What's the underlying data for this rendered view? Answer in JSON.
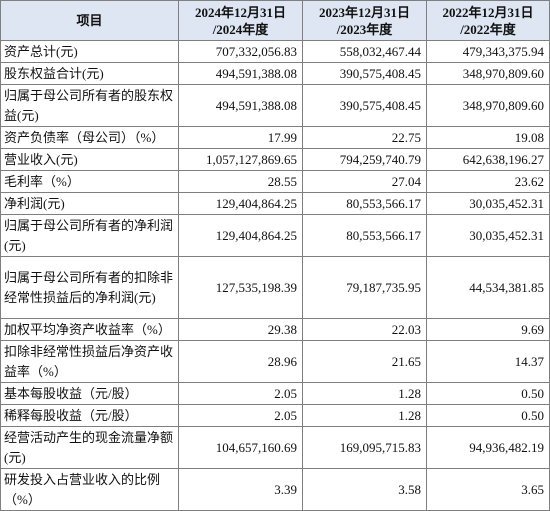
{
  "table": {
    "headers": {
      "item": "项目",
      "col2024": [
        "2024年12月31日",
        "/2024年度"
      ],
      "col2023": [
        "2023年12月31日",
        "/2023年度"
      ],
      "col2022": [
        "2022年12月31日",
        "/2022年度"
      ]
    },
    "rows": [
      {
        "label": "资产总计(元)",
        "v2024": "707,332,056.83",
        "v2023": "558,032,467.44",
        "v2022": "479,343,375.94"
      },
      {
        "label": "股东权益合计(元)",
        "v2024": "494,591,388.08",
        "v2023": "390,575,408.45",
        "v2022": "348,970,809.60"
      },
      {
        "label": "归属于母公司所有者的股东权益(元)",
        "v2024": "494,591,388.08",
        "v2023": "390,575,408.45",
        "v2022": "348,970,809.60"
      },
      {
        "label": "资产负债率（母公司）（%）",
        "v2024": "17.99",
        "v2023": "22.75",
        "v2022": "19.08"
      },
      {
        "label": "营业收入(元)",
        "v2024": "1,057,127,869.65",
        "v2023": "794,259,740.79",
        "v2022": "642,638,196.27"
      },
      {
        "label": "毛利率（%）",
        "v2024": "28.55",
        "v2023": "27.04",
        "v2022": "23.62"
      },
      {
        "label": "净利润(元)",
        "v2024": "129,404,864.25",
        "v2023": "80,553,566.17",
        "v2022": "30,035,452.31"
      },
      {
        "label": "归属于母公司所有者的净利润(元)",
        "v2024": "129,404,864.25",
        "v2023": "80,553,566.17",
        "v2022": "30,035,452.31"
      },
      {
        "label": "归属于母公司所有者的扣除非经常性损益后的净利润(元)",
        "v2024": "127,535,198.39",
        "v2023": "79,187,735.95",
        "v2022": "44,534,381.85"
      },
      {
        "label": "加权平均净资产收益率（%）",
        "v2024": "29.38",
        "v2023": "22.03",
        "v2022": "9.69"
      },
      {
        "label": "扣除非经常性损益后净资产收益率（%）",
        "v2024": "28.96",
        "v2023": "21.65",
        "v2022": "14.37"
      },
      {
        "label": "基本每股收益（元/股）",
        "v2024": "2.05",
        "v2023": "1.28",
        "v2022": "0.50"
      },
      {
        "label": "稀释每股收益（元/股）",
        "v2024": "2.05",
        "v2023": "1.28",
        "v2022": "0.50"
      },
      {
        "label": "经营活动产生的现金流量净额(元)",
        "v2024": "104,657,160.69",
        "v2023": "169,095,715.83",
        "v2022": "94,936,482.19"
      },
      {
        "label": "研发投入占营业收入的比例（%）",
        "v2024": "3.39",
        "v2023": "3.58",
        "v2022": "3.65"
      }
    ]
  }
}
